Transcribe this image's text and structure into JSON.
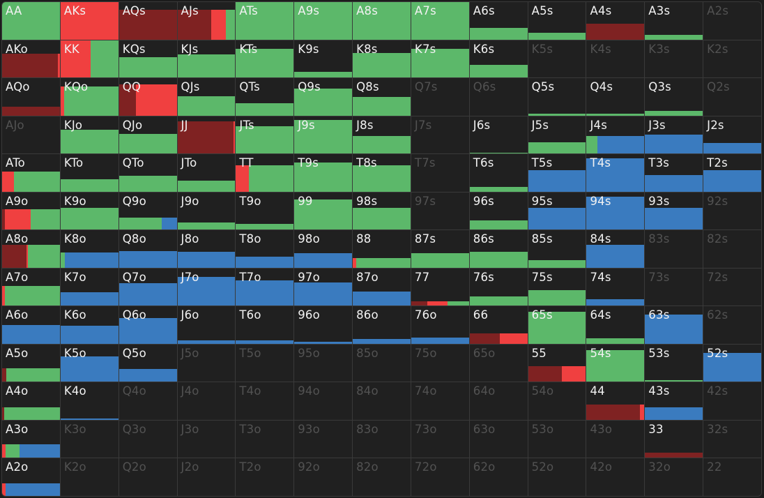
{
  "colors": {
    "dark_red": "#7f2222",
    "red": "#f04040",
    "green": "#5cb86a",
    "blue": "#3a7bbf"
  },
  "range_grid": {
    "rows": [
      [
        "AA",
        "AKs",
        "AQs",
        "AJs",
        "ATs",
        "A9s",
        "A8s",
        "A7s",
        "A6s",
        "A5s",
        "A4s",
        "A3s",
        "A2s"
      ],
      [
        "AKo",
        "KK",
        "KQs",
        "KJs",
        "KTs",
        "K9s",
        "K8s",
        "K7s",
        "K6s",
        "K5s",
        "K4s",
        "K3s",
        "K2s"
      ],
      [
        "AQo",
        "KQo",
        "QQ",
        "QJs",
        "QTs",
        "Q9s",
        "Q8s",
        "Q7s",
        "Q6s",
        "Q5s",
        "Q4s",
        "Q3s",
        "Q2s"
      ],
      [
        "AJo",
        "KJo",
        "QJo",
        "JJ",
        "JTs",
        "J9s",
        "J8s",
        "J7s",
        "J6s",
        "J5s",
        "J4s",
        "J3s",
        "J2s"
      ],
      [
        "ATo",
        "KTo",
        "QTo",
        "JTo",
        "TT",
        "T9s",
        "T8s",
        "T7s",
        "T6s",
        "T5s",
        "T4s",
        "T3s",
        "T2s"
      ],
      [
        "A9o",
        "K9o",
        "Q9o",
        "J9o",
        "T9o",
        "99",
        "98s",
        "97s",
        "96s",
        "95s",
        "94s",
        "93s",
        "92s"
      ],
      [
        "A8o",
        "K8o",
        "Q8o",
        "J8o",
        "T8o",
        "98o",
        "88",
        "87s",
        "86s",
        "85s",
        "84s",
        "83s",
        "82s"
      ],
      [
        "A7o",
        "K7o",
        "Q7o",
        "J7o",
        "T7o",
        "97o",
        "87o",
        "77",
        "76s",
        "75s",
        "74s",
        "73s",
        "72s"
      ],
      [
        "A6o",
        "K6o",
        "Q6o",
        "J6o",
        "T6o",
        "96o",
        "86o",
        "76o",
        "66",
        "65s",
        "64s",
        "63s",
        "62s"
      ],
      [
        "A5o",
        "K5o",
        "Q5o",
        "J5o",
        "T5o",
        "95o",
        "85o",
        "75o",
        "65o",
        "55",
        "54s",
        "53s",
        "52s"
      ],
      [
        "A4o",
        "K4o",
        "Q4o",
        "J4o",
        "T4o",
        "94o",
        "84o",
        "74o",
        "64o",
        "54o",
        "44",
        "43s",
        "42s"
      ],
      [
        "A3o",
        "K3o",
        "Q3o",
        "J3o",
        "T3o",
        "93o",
        "83o",
        "73o",
        "63o",
        "53o",
        "43o",
        "33",
        "32s"
      ],
      [
        "A2o",
        "K2o",
        "Q2o",
        "J2o",
        "T2o",
        "92o",
        "82o",
        "72o",
        "62o",
        "52o",
        "42o",
        "32o",
        "22"
      ]
    ],
    "frequencies": {
      "AA": {
        "weight": 1.0,
        "mix": [
          [
            "green",
            1
          ]
        ]
      },
      "AKs": {
        "weight": 1.0,
        "mix": [
          [
            "red",
            1
          ]
        ]
      },
      "AQs": {
        "weight": 0.8,
        "mix": [
          [
            "dark_red",
            1
          ]
        ]
      },
      "AJs": {
        "weight": 0.8,
        "mix": [
          [
            "dark_red",
            0.58
          ],
          [
            "red",
            0.26
          ],
          [
            "green",
            0.16
          ]
        ]
      },
      "ATs": {
        "weight": 1.0,
        "mix": [
          [
            "green",
            1
          ]
        ]
      },
      "A9s": {
        "weight": 1.0,
        "mix": [
          [
            "green",
            1
          ]
        ]
      },
      "A8s": {
        "weight": 1.0,
        "mix": [
          [
            "green",
            1
          ]
        ]
      },
      "A7s": {
        "weight": 1.0,
        "mix": [
          [
            "green",
            1
          ]
        ]
      },
      "A6s": {
        "weight": 0.3,
        "mix": [
          [
            "green",
            1
          ]
        ]
      },
      "A5s": {
        "weight": 0.18,
        "mix": [
          [
            "green",
            1
          ]
        ]
      },
      "A4s": {
        "weight": 0.42,
        "mix": [
          [
            "dark_red",
            1
          ]
        ]
      },
      "A3s": {
        "weight": 0.13,
        "mix": [
          [
            "green",
            1
          ]
        ]
      },
      "AKo": {
        "weight": 0.64,
        "mix": [
          [
            "dark_red",
            0.97
          ],
          [
            "red",
            0.03
          ]
        ]
      },
      "KK": {
        "weight": 1.0,
        "mix": [
          [
            "red",
            0.52
          ],
          [
            "green",
            0.48
          ]
        ]
      },
      "KQs": {
        "weight": 0.55,
        "mix": [
          [
            "green",
            1
          ]
        ]
      },
      "KJs": {
        "weight": 0.62,
        "mix": [
          [
            "green",
            1
          ]
        ]
      },
      "KTs": {
        "weight": 0.77,
        "mix": [
          [
            "green",
            1
          ]
        ]
      },
      "K9s": {
        "weight": 0.16,
        "mix": [
          [
            "green",
            1
          ]
        ]
      },
      "K8s": {
        "weight": 0.66,
        "mix": [
          [
            "green",
            1
          ]
        ]
      },
      "K7s": {
        "weight": 0.77,
        "mix": [
          [
            "green",
            1
          ]
        ]
      },
      "K6s": {
        "weight": 0.33,
        "mix": [
          [
            "green",
            1
          ]
        ]
      },
      "AQo": {
        "weight": 0.24,
        "mix": [
          [
            "dark_red",
            1
          ]
        ]
      },
      "KQo": {
        "weight": 0.77,
        "mix": [
          [
            "red",
            0.06
          ],
          [
            "green",
            0.94
          ]
        ]
      },
      "QQ": {
        "weight": 0.84,
        "mix": [
          [
            "dark_red",
            0.29
          ],
          [
            "red",
            0.71
          ]
        ]
      },
      "QJs": {
        "weight": 0.52,
        "mix": [
          [
            "green",
            1
          ]
        ]
      },
      "QTs": {
        "weight": 0.32,
        "mix": [
          [
            "green",
            1
          ]
        ]
      },
      "Q9s": {
        "weight": 0.73,
        "mix": [
          [
            "green",
            1
          ]
        ]
      },
      "Q8s": {
        "weight": 0.5,
        "mix": [
          [
            "green",
            1
          ]
        ]
      },
      "Q5s": {
        "weight": 0.04,
        "mix": [
          [
            "green",
            1
          ]
        ]
      },
      "Q4s": {
        "weight": 0.04,
        "mix": [
          [
            "green",
            1
          ]
        ]
      },
      "Q3s": {
        "weight": 0.12,
        "mix": [
          [
            "green",
            1
          ]
        ]
      },
      "KJo": {
        "weight": 0.63,
        "mix": [
          [
            "green",
            1
          ]
        ]
      },
      "QJo": {
        "weight": 0.53,
        "mix": [
          [
            "green",
            1
          ]
        ]
      },
      "JJ": {
        "weight": 0.86,
        "mix": [
          [
            "dark_red",
            0.97
          ],
          [
            "red",
            0.03
          ]
        ]
      },
      "JTs": {
        "weight": 0.73,
        "mix": [
          [
            "green",
            1
          ]
        ]
      },
      "J9s": {
        "weight": 0.9,
        "mix": [
          [
            "green",
            1
          ]
        ]
      },
      "J8s": {
        "weight": 0.47,
        "mix": [
          [
            "green",
            1
          ]
        ]
      },
      "J6s": {
        "weight": 0.03,
        "mix": [
          [
            "green",
            1
          ]
        ]
      },
      "J5s": {
        "weight": 0.3,
        "mix": [
          [
            "green",
            1
          ]
        ]
      },
      "J4s": {
        "weight": 0.47,
        "mix": [
          [
            "green",
            0.19
          ],
          [
            "blue",
            0.81
          ]
        ]
      },
      "J3s": {
        "weight": 0.5,
        "mix": [
          [
            "blue",
            1
          ]
        ]
      },
      "J2s": {
        "weight": 0.28,
        "mix": [
          [
            "blue",
            1
          ]
        ]
      },
      "ATo": {
        "weight": 0.54,
        "mix": [
          [
            "red",
            0.2
          ],
          [
            "green",
            0.8
          ]
        ]
      },
      "KTo": {
        "weight": 0.33,
        "mix": [
          [
            "green",
            1
          ]
        ]
      },
      "QTo": {
        "weight": 0.42,
        "mix": [
          [
            "green",
            1
          ]
        ]
      },
      "JTo": {
        "weight": 0.3,
        "mix": [
          [
            "green",
            1
          ]
        ]
      },
      "TT": {
        "weight": 0.71,
        "mix": [
          [
            "red",
            0.22
          ],
          [
            "green",
            0.78
          ]
        ]
      },
      "T9s": {
        "weight": 0.78,
        "mix": [
          [
            "green",
            1
          ]
        ]
      },
      "T8s": {
        "weight": 0.7,
        "mix": [
          [
            "green",
            1
          ]
        ]
      },
      "T6s": {
        "weight": 0.12,
        "mix": [
          [
            "green",
            1
          ]
        ]
      },
      "T5s": {
        "weight": 0.57,
        "mix": [
          [
            "blue",
            1
          ]
        ]
      },
      "T4s": {
        "weight": 0.9,
        "mix": [
          [
            "blue",
            1
          ]
        ]
      },
      "T3s": {
        "weight": 0.45,
        "mix": [
          [
            "blue",
            1
          ]
        ]
      },
      "T2s": {
        "weight": 0.57,
        "mix": [
          [
            "blue",
            1
          ]
        ]
      },
      "A9o": {
        "weight": 0.55,
        "mix": [
          [
            "dark_red",
            0.05
          ],
          [
            "red",
            0.45
          ],
          [
            "green",
            0.5
          ]
        ]
      },
      "K9o": {
        "weight": 0.58,
        "mix": [
          [
            "green",
            1
          ]
        ]
      },
      "Q9o": {
        "weight": 0.33,
        "mix": [
          [
            "green",
            0.74
          ],
          [
            "blue",
            0.26
          ]
        ]
      },
      "J9o": {
        "weight": 0.19,
        "mix": [
          [
            "green",
            1
          ]
        ]
      },
      "T9o": {
        "weight": 0.16,
        "mix": [
          [
            "green",
            1
          ]
        ]
      },
      "99": {
        "weight": 0.8,
        "mix": [
          [
            "green",
            1
          ]
        ]
      },
      "98s": {
        "weight": 0.59,
        "mix": [
          [
            "green",
            1
          ]
        ]
      },
      "96s": {
        "weight": 0.25,
        "mix": [
          [
            "green",
            1
          ]
        ]
      },
      "95s": {
        "weight": 0.59,
        "mix": [
          [
            "blue",
            1
          ]
        ]
      },
      "94s": {
        "weight": 0.89,
        "mix": [
          [
            "blue",
            1
          ]
        ]
      },
      "93s": {
        "weight": 0.59,
        "mix": [
          [
            "blue",
            1
          ]
        ]
      },
      "A8o": {
        "weight": 0.62,
        "mix": [
          [
            "dark_red",
            0.42
          ],
          [
            "red",
            0.03
          ],
          [
            "green",
            0.55
          ]
        ]
      },
      "K8o": {
        "weight": 0.4,
        "mix": [
          [
            "green",
            0.07
          ],
          [
            "blue",
            0.93
          ]
        ]
      },
      "Q8o": {
        "weight": 0.44,
        "mix": [
          [
            "blue",
            1
          ]
        ]
      },
      "J8o": {
        "weight": 0.42,
        "mix": [
          [
            "blue",
            1
          ]
        ]
      },
      "T8o": {
        "weight": 0.3,
        "mix": [
          [
            "blue",
            1
          ]
        ]
      },
      "98o": {
        "weight": 0.38,
        "mix": [
          [
            "blue",
            1
          ]
        ]
      },
      "88": {
        "weight": 0.25,
        "mix": [
          [
            "red",
            0.06
          ],
          [
            "green",
            0.94
          ]
        ]
      },
      "87s": {
        "weight": 0.39,
        "mix": [
          [
            "green",
            1
          ]
        ]
      },
      "86s": {
        "weight": 0.43,
        "mix": [
          [
            "green",
            1
          ]
        ]
      },
      "85s": {
        "weight": 0.2,
        "mix": [
          [
            "green",
            1
          ]
        ]
      },
      "84s": {
        "weight": 0.62,
        "mix": [
          [
            "blue",
            1
          ]
        ]
      },
      "A7o": {
        "weight": 0.52,
        "mix": [
          [
            "red",
            0.05
          ],
          [
            "green",
            0.95
          ]
        ]
      },
      "K7o": {
        "weight": 0.37,
        "mix": [
          [
            "blue",
            1
          ]
        ]
      },
      "Q7o": {
        "weight": 0.61,
        "mix": [
          [
            "blue",
            1
          ]
        ]
      },
      "J7o": {
        "weight": 0.77,
        "mix": [
          [
            "blue",
            1
          ]
        ]
      },
      "T7o": {
        "weight": 0.67,
        "mix": [
          [
            "blue",
            1
          ]
        ]
      },
      "97o": {
        "weight": 0.62,
        "mix": [
          [
            "blue",
            1
          ]
        ]
      },
      "87o": {
        "weight": 0.38,
        "mix": [
          [
            "blue",
            1
          ]
        ]
      },
      "77": {
        "weight": 0.12,
        "mix": [
          [
            "dark_red",
            0.28
          ],
          [
            "red",
            0.35
          ],
          [
            "green",
            0.37
          ]
        ]
      },
      "76s": {
        "weight": 0.24,
        "mix": [
          [
            "green",
            1
          ]
        ]
      },
      "75s": {
        "weight": 0.41,
        "mix": [
          [
            "green",
            1
          ]
        ]
      },
      "74s": {
        "weight": 0.18,
        "mix": [
          [
            "blue",
            1
          ]
        ]
      },
      "A6o": {
        "weight": 0.5,
        "mix": [
          [
            "blue",
            1
          ]
        ]
      },
      "K6o": {
        "weight": 0.48,
        "mix": [
          [
            "blue",
            1
          ]
        ]
      },
      "Q6o": {
        "weight": 0.69,
        "mix": [
          [
            "blue",
            1
          ]
        ]
      },
      "J6o": {
        "weight": 0.09,
        "mix": [
          [
            "blue",
            1
          ]
        ]
      },
      "T6o": {
        "weight": 0.09,
        "mix": [
          [
            "blue",
            1
          ]
        ]
      },
      "96o": {
        "weight": 0.06,
        "mix": [
          [
            "blue",
            1
          ]
        ]
      },
      "86o": {
        "weight": 0.13,
        "mix": [
          [
            "blue",
            1
          ]
        ]
      },
      "76o": {
        "weight": 0.17,
        "mix": [
          [
            "blue",
            1
          ]
        ]
      },
      "66": {
        "weight": 0.28,
        "mix": [
          [
            "dark_red",
            0.52
          ],
          [
            "red",
            0.48
          ]
        ]
      },
      "65s": {
        "weight": 0.85,
        "mix": [
          [
            "green",
            1
          ]
        ]
      },
      "64s": {
        "weight": 0.14,
        "mix": [
          [
            "green",
            1
          ]
        ]
      },
      "63s": {
        "weight": 0.78,
        "mix": [
          [
            "blue",
            1
          ]
        ]
      },
      "A5o": {
        "weight": 0.37,
        "mix": [
          [
            "dark_red",
            0.07
          ],
          [
            "green",
            0.93
          ]
        ]
      },
      "K5o": {
        "weight": 0.68,
        "mix": [
          [
            "blue",
            1
          ]
        ]
      },
      "Q5o": {
        "weight": 0.34,
        "mix": [
          [
            "blue",
            1
          ]
        ]
      },
      "55": {
        "weight": 0.41,
        "mix": [
          [
            "dark_red",
            0.59
          ],
          [
            "red",
            0.41
          ]
        ]
      },
      "54s": {
        "weight": 0.85,
        "mix": [
          [
            "green",
            1
          ]
        ]
      },
      "53s": {
        "weight": 0.05,
        "mix": [
          [
            "green",
            1
          ]
        ]
      },
      "52s": {
        "weight": 0.78,
        "mix": [
          [
            "blue",
            1
          ]
        ]
      },
      "A4o": {
        "weight": 0.33,
        "mix": [
          [
            "dark_red",
            0.04
          ],
          [
            "green",
            0.96
          ]
        ]
      },
      "K4o": {
        "weight": 0.04,
        "mix": [
          [
            "blue",
            1
          ]
        ]
      },
      "44": {
        "weight": 0.41,
        "mix": [
          [
            "dark_red",
            0.93
          ],
          [
            "red",
            0.07
          ]
        ]
      },
      "43s": {
        "weight": 0.33,
        "mix": [
          [
            "blue",
            1
          ]
        ]
      },
      "A3o": {
        "weight": 0.36,
        "mix": [
          [
            "red",
            0.06
          ],
          [
            "green",
            0.24
          ],
          [
            "blue",
            0.7
          ]
        ]
      },
      "33": {
        "weight": 0.14,
        "mix": [
          [
            "dark_red",
            1
          ]
        ]
      },
      "A2o": {
        "weight": 0.33,
        "mix": [
          [
            "red",
            0.06
          ],
          [
            "blue",
            0.94
          ]
        ]
      }
    }
  }
}
